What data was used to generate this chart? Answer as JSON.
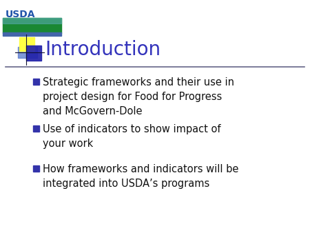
{
  "title": "Introduction",
  "title_color": "#3333BB",
  "title_fontsize": 20,
  "background_color": "#FFFFFF",
  "bullet_color": "#3333AA",
  "bullet_text_color": "#111111",
  "bullet_fontsize": 10.5,
  "bullets": [
    "Strategic frameworks and their use in\nproject design for Food for Progress\nand McGovern-Dole",
    "Use of indicators to show impact of\nyour work",
    "How frameworks and indicators will be\nintegrated into USDA’s programs"
  ],
  "separator_color": "#666688",
  "logo_text": "USDA",
  "logo_text_color": "#2255AA",
  "logo_green_color": "#1A8833",
  "logo_teal_color": "#55AAAA",
  "logo_blue_color": "#4466AA",
  "decoration_yellow": "#FFFF44",
  "decoration_blue_dark": "#2222AA",
  "decoration_blue_light": "#5577CC"
}
